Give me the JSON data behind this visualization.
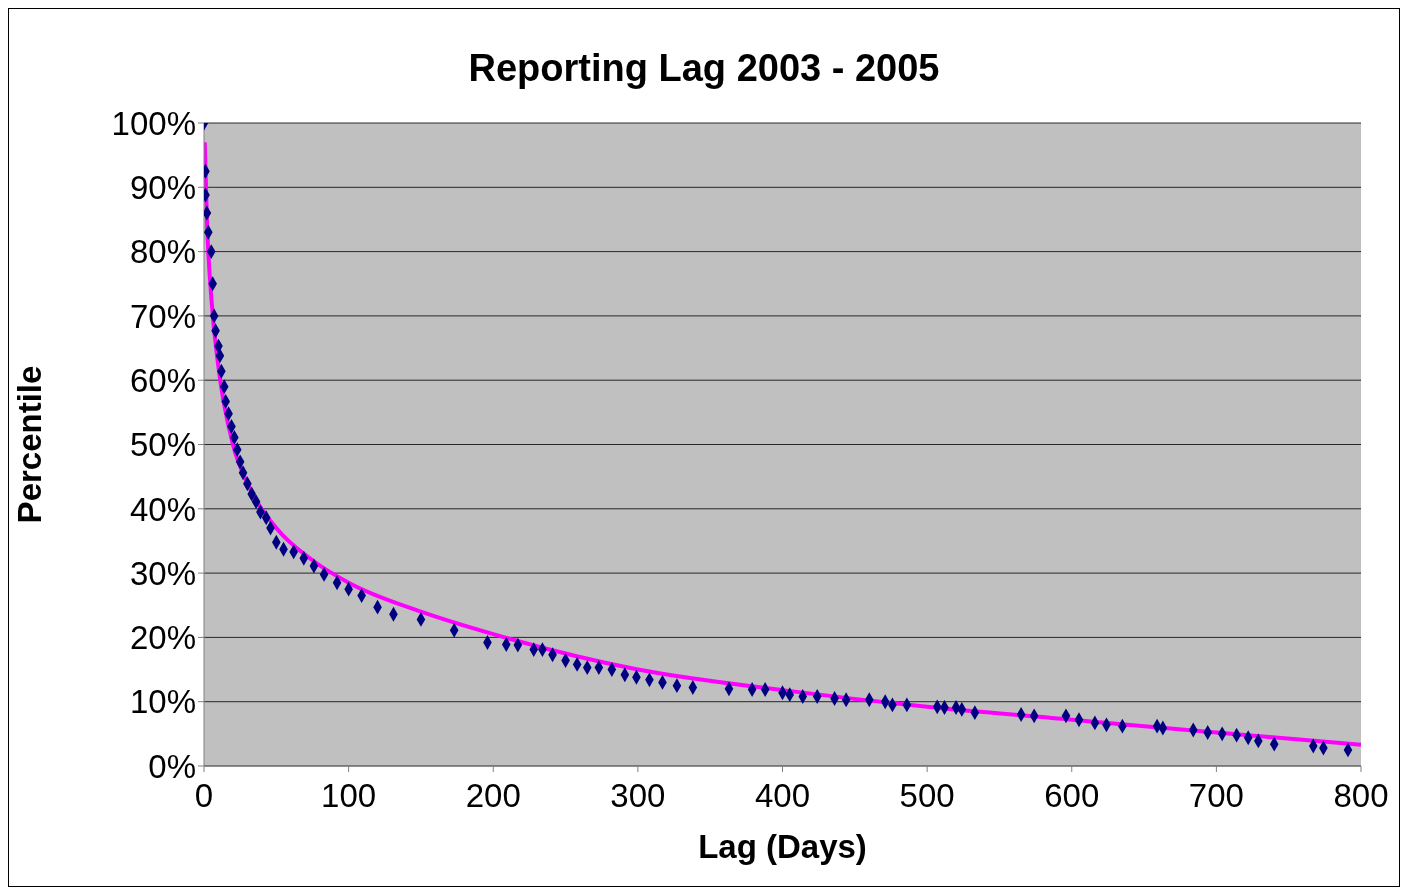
{
  "chart_data": {
    "type": "scatter",
    "title": "Reporting Lag 2003 - 2005",
    "xlabel": "Lag (Days)",
    "ylabel": "Percentile",
    "xlim": [
      0,
      800
    ],
    "xticks": [
      0,
      100,
      200,
      300,
      400,
      500,
      600,
      700,
      800
    ],
    "ylim": [
      0,
      100
    ],
    "yticks": [
      {
        "value": 0,
        "label": "0%"
      },
      {
        "value": 10,
        "label": "10%"
      },
      {
        "value": 20,
        "label": "20%"
      },
      {
        "value": 30,
        "label": "30%"
      },
      {
        "value": 40,
        "label": "40%"
      },
      {
        "value": 50,
        "label": "50%"
      },
      {
        "value": 60,
        "label": "60%"
      },
      {
        "value": 70,
        "label": "70%"
      },
      {
        "value": 80,
        "label": "80%"
      },
      {
        "value": 90,
        "label": "90%"
      },
      {
        "value": 100,
        "label": "100%"
      }
    ],
    "grid": "y",
    "legend": false,
    "series": [
      {
        "marker": "diamond",
        "color": "#000080",
        "x": [
          0,
          1,
          1,
          2,
          3,
          5,
          6,
          7,
          8,
          10,
          11,
          12,
          14,
          15,
          17,
          19,
          21,
          23,
          25,
          27,
          30,
          33,
          36,
          39,
          43,
          46,
          50,
          55,
          62,
          69,
          76,
          83,
          92,
          100,
          109,
          120,
          131,
          150,
          173,
          196,
          209,
          217,
          228,
          234,
          241,
          250,
          258,
          265,
          273,
          282,
          291,
          299,
          308,
          317,
          327,
          338,
          363,
          379,
          388,
          400,
          405,
          414,
          424,
          436,
          444,
          460,
          471,
          476,
          486,
          507,
          512,
          520,
          524,
          533,
          565,
          574,
          596,
          605,
          616,
          624,
          635,
          659,
          663,
          684,
          694,
          704,
          714,
          722,
          729,
          740,
          767,
          774,
          791
        ],
        "values": [
          100,
          92.5,
          88.8,
          86,
          83,
          80,
          75,
          70,
          67.7,
          65.3,
          63.8,
          61.4,
          59,
          56.7,
          54.8,
          52.8,
          51.1,
          49.2,
          47.3,
          45.6,
          43.9,
          42.3,
          41.1,
          39.5,
          38.6,
          37,
          34.8,
          33.7,
          33.3,
          32.3,
          31.1,
          29.8,
          28.5,
          27.5,
          26.5,
          24.7,
          23.6,
          22.8,
          21.1,
          19.2,
          18.9,
          18.8,
          18.1,
          18.1,
          17.3,
          16.4,
          15.8,
          15.3,
          15.3,
          15,
          14.2,
          13.8,
          13.4,
          13,
          12.5,
          12.2,
          12,
          11.9,
          11.9,
          11.4,
          11.1,
          10.8,
          10.8,
          10.5,
          10.3,
          10.3,
          10,
          9.5,
          9.5,
          9.2,
          9.1,
          9.1,
          8.8,
          8.3,
          8,
          7.8,
          7.8,
          7.2,
          6.7,
          6.4,
          6.2,
          6.2,
          5.9,
          5.6,
          5.2,
          5,
          4.8,
          4.4,
          3.9,
          3.4,
          3.1,
          2.8,
          2.5
        ]
      },
      {
        "type": "line",
        "marker": "none",
        "color": "#ff00ff",
        "x": [
          0.5,
          2,
          5,
          10,
          20,
          30,
          50,
          75,
          100,
          150,
          200,
          300,
          400,
          500,
          600,
          700,
          800
        ],
        "values": [
          97,
          85,
          73,
          62,
          50,
          44,
          37,
          32,
          28.5,
          24,
          20.5,
          15,
          11.8,
          9.2,
          7.2,
          5.2,
          3.3
        ]
      }
    ]
  }
}
